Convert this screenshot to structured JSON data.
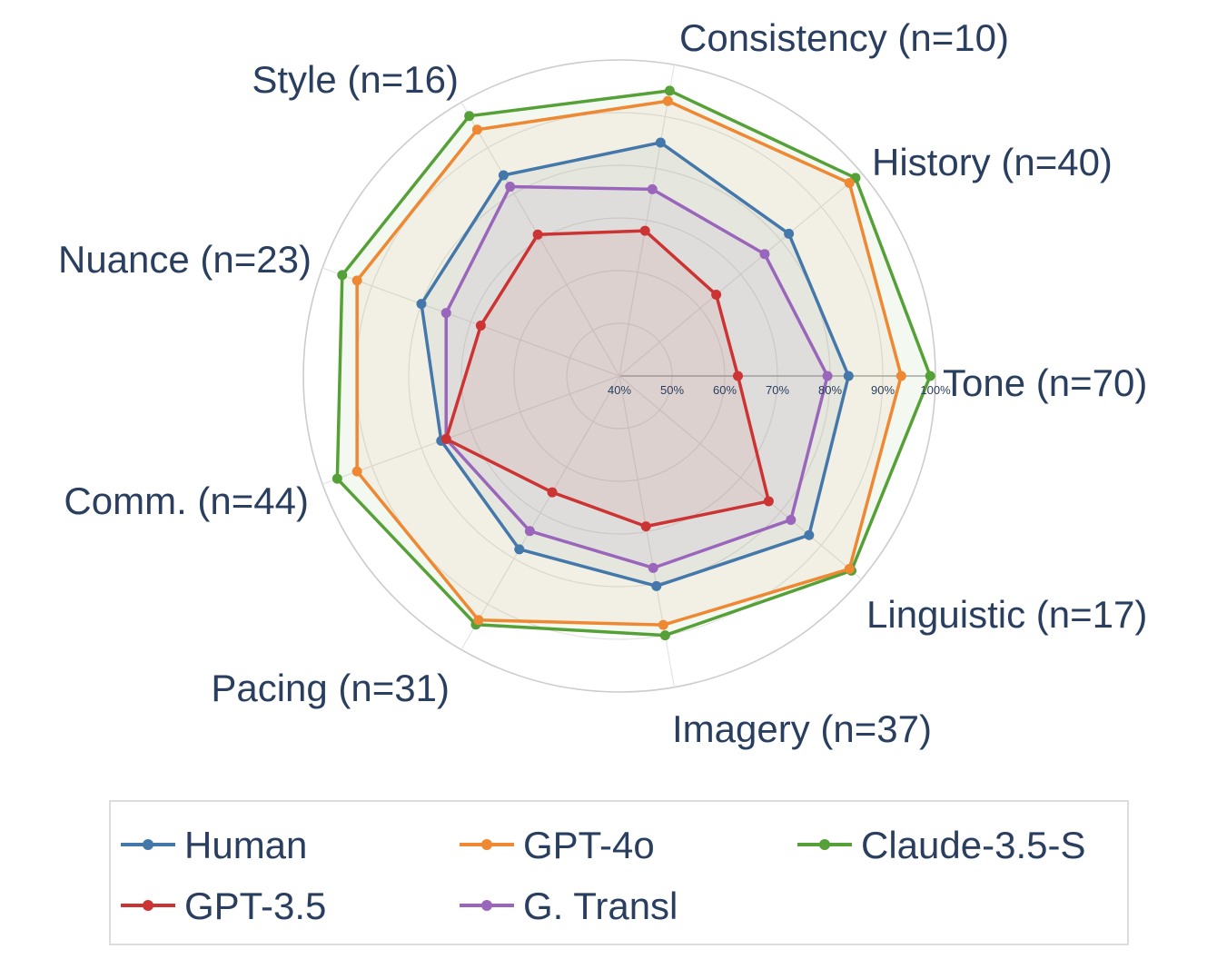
{
  "chart_data": {
    "type": "radar",
    "title": "",
    "axes": [
      "Tone (n=70)",
      "History (n=40)",
      "Consistency (n=10)",
      "Style (n=16)",
      "Nuance (n=23)",
      "Comm. (n=44)",
      "Pacing (n=31)",
      "Imagery (n=37)",
      "Linguistic (n=17)"
    ],
    "radial_range": [
      40,
      100
    ],
    "radial_ticks": [
      40,
      50,
      60,
      70,
      80,
      90,
      100
    ],
    "radial_tick_labels": [
      "40%",
      "50%",
      "60%",
      "70%",
      "80%",
      "90%",
      "100%"
    ],
    "grid": true,
    "legend_position": "bottom",
    "series": [
      {
        "name": "Human",
        "color": "#4477aa",
        "values": [
          83.5,
          82,
          85,
          84,
          80,
          76,
          78,
          80.5,
          87
        ]
      },
      {
        "name": "GPT-4o",
        "color": "#ee8833",
        "values": [
          93.5,
          97,
          93,
          94,
          93,
          93,
          93.5,
          88,
          97
        ]
      },
      {
        "name": "Claude-3.5-S",
        "color": "#55a037",
        "values": [
          99,
          98.5,
          95,
          97,
          96,
          97,
          94.5,
          90,
          97.5
        ]
      },
      {
        "name": "GPT-3.5",
        "color": "#cc3333",
        "values": [
          62.5,
          64,
          68,
          71,
          68,
          75,
          65.5,
          69,
          77
        ]
      },
      {
        "name": "G. Transl",
        "color": "#9a66bb",
        "values": [
          79.5,
          76,
          76,
          81.5,
          75,
          75,
          74,
          77,
          82.5
        ]
      }
    ]
  }
}
